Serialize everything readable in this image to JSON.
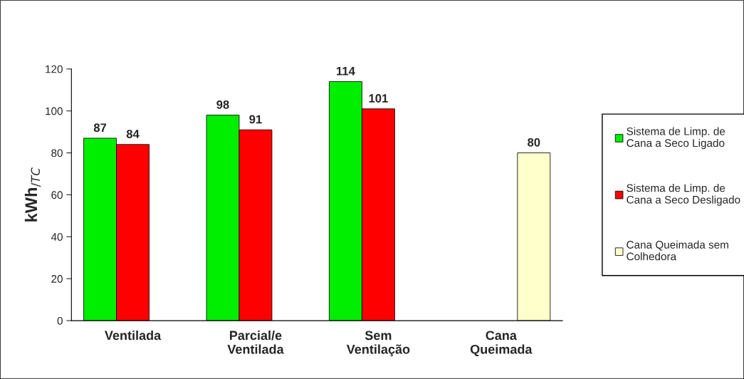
{
  "chart_data": {
    "type": "bar",
    "ylabel": "kWh$_{/TC}$",
    "categories": [
      "Ventilada",
      "Parcial/e\nVentilada",
      "Sem\nVentilação",
      "Cana\nQueimada"
    ],
    "series": [
      {
        "name": "Sistema de Limp. de\nCana a Seco Ligado",
        "color": "#00ee00",
        "values": [
          87,
          98,
          114,
          null
        ]
      },
      {
        "name": "Sistema de Limp. de\nCana a Seco Desligado",
        "color": "#ff0000",
        "values": [
          84,
          91,
          101,
          null
        ]
      },
      {
        "name": "Cana Queimada sem\nColhedora",
        "color": "#ffffcc",
        "values": [
          null,
          null,
          null,
          80
        ]
      }
    ],
    "ylim": [
      0,
      120
    ],
    "yticks": [
      0,
      20,
      40,
      60,
      80,
      100,
      120
    ],
    "data_labels": true,
    "grid": false,
    "legend": "right"
  }
}
